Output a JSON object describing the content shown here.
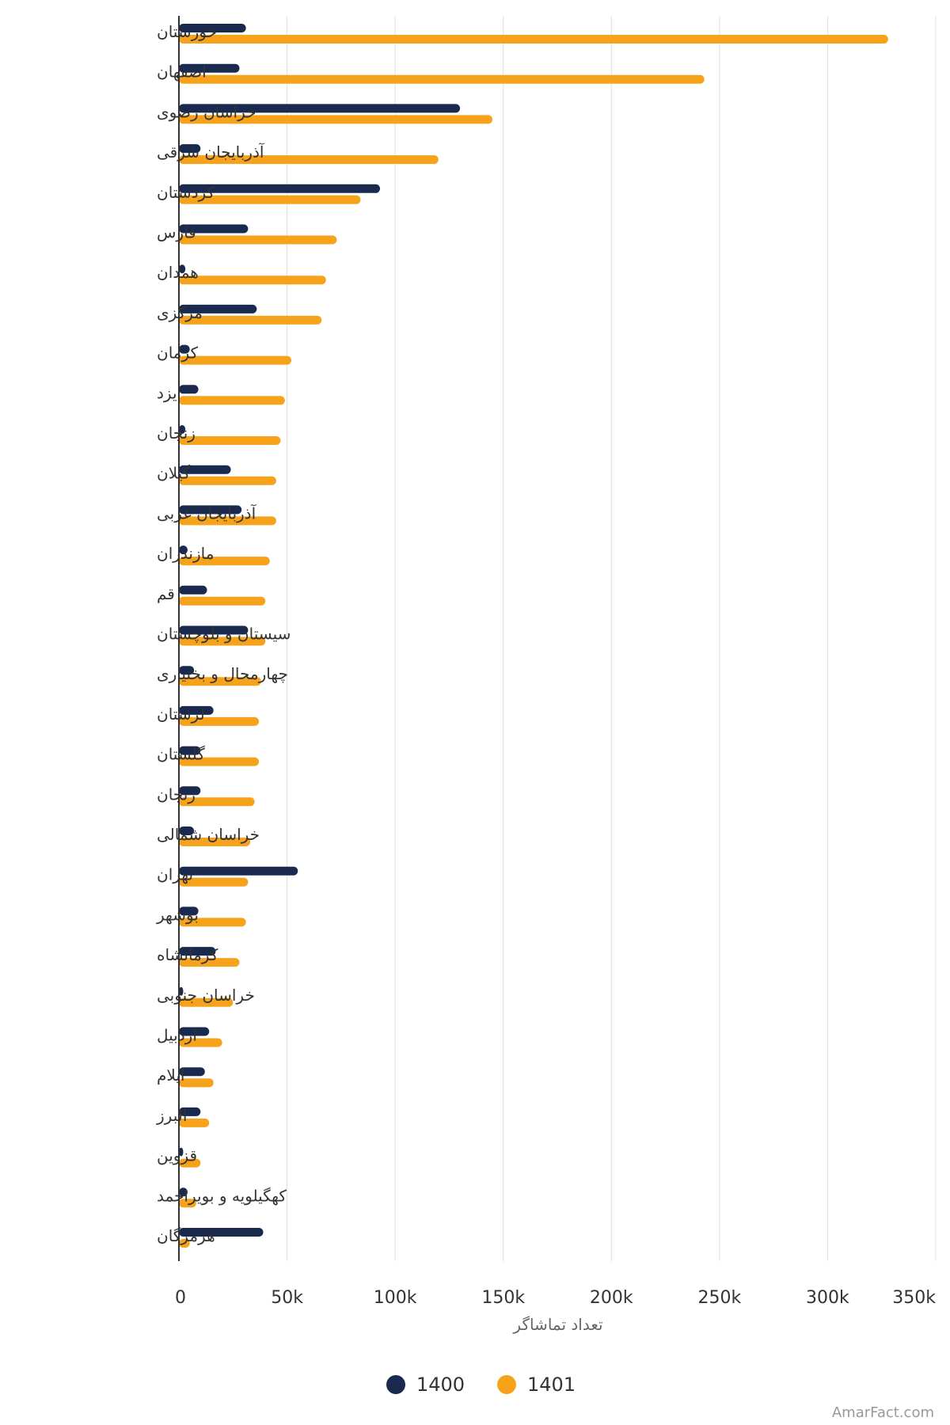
{
  "chart_data": {
    "type": "bar",
    "orientation": "horizontal",
    "categories": [
      "خوزستان",
      "اصفهان",
      "خراسان رضوی",
      "آذربایجان شرقی",
      "کردستان",
      "فارس",
      "همدان",
      "مرکزی",
      "کرمان",
      "یزد",
      "زنجان",
      "گیلان",
      "آذربایجان غربی",
      "مازندران",
      "قم",
      "سیستان و بلوچستان",
      "چهارمحال و بختیاری",
      "لرستان",
      "گلستان",
      "زنجان",
      "خراسان شمالی",
      "تهران",
      "بوشهر",
      "کرمانشاه",
      "خراسان جنوبی",
      "اردبیل",
      "ایلام",
      "البرز",
      "قزوین",
      "کهگیلویه و بویراحمد",
      "هرمزگان"
    ],
    "series": [
      {
        "name": "1400",
        "color": "#1a2a4f",
        "values": [
          31000,
          28000,
          130000,
          10000,
          93000,
          32000,
          3000,
          36000,
          5000,
          9000,
          3000,
          24000,
          29000,
          4000,
          13000,
          32000,
          7000,
          16000,
          10000,
          10000,
          7000,
          55000,
          9000,
          17000,
          2000,
          14000,
          12000,
          10000,
          2000,
          4000,
          39000
        ]
      },
      {
        "name": "1401",
        "color": "#f7a21b",
        "values": [
          328000,
          243000,
          145000,
          120000,
          84000,
          73000,
          68000,
          66000,
          52000,
          49000,
          47000,
          45000,
          45000,
          42000,
          40000,
          40000,
          38000,
          37000,
          37000,
          35000,
          33000,
          32000,
          31000,
          28000,
          25000,
          20000,
          16000,
          14000,
          10000,
          8000,
          5000
        ]
      }
    ],
    "xlim": [
      0,
      350000
    ],
    "ticks": [
      "0",
      "50k",
      "100k",
      "150k",
      "200k",
      "250k",
      "300k",
      "350k"
    ],
    "xlabel": "تعداد تماشاگر",
    "grid": true,
    "legend": "bottom-center"
  },
  "credit": "AmarFact.com"
}
